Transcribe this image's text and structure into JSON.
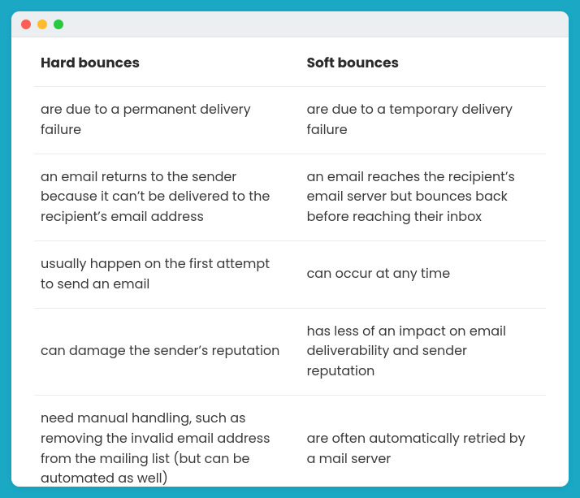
{
  "window": {
    "dot_colors": [
      "#ff5f57",
      "#febc2e",
      "#28c840"
    ],
    "titlebar_bg": "#eceff1",
    "frame_bg": "#1aa8c4",
    "content_bg": "#ffffff",
    "border_color": "#ececec"
  },
  "table": {
    "columns": [
      "Hard bounces",
      "Soft bounces"
    ],
    "rows": [
      [
        "are due to a permanent delivery failure",
        "are due to a temporary delivery failure"
      ],
      [
        "an email returns to the sender because it can’t be delivered to the recipient’s email address",
        "an email reaches the recipient’s email server but bounces back before reaching their inbox"
      ],
      [
        "usually happen on the first attempt to send an email",
        "can occur at any time"
      ],
      [
        "can damage the sender’s reputation",
        "has less of an impact on email deliverability and sender reputation"
      ],
      [
        "need manual handling, such as removing the invalid email address from the mailing list (but can be automated as well)",
        "are often automatically retried by a mail server"
      ]
    ],
    "header_fontsize": 17,
    "cell_fontsize": 16,
    "text_color": "#3a3a3a",
    "header_color": "#2b2b2b",
    "column_widths": [
      "52%",
      "48%"
    ]
  }
}
